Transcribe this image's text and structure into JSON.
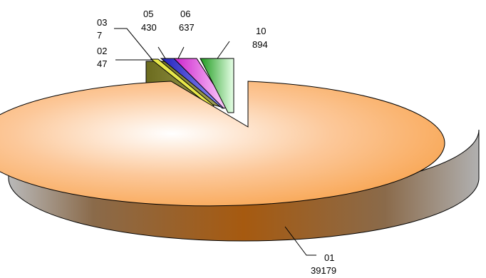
{
  "chart_data": {
    "type": "pie",
    "style": "3d-exploded",
    "slices": [
      {
        "label": "01",
        "value": 39179,
        "color": "#f7941d"
      },
      {
        "label": "02",
        "value": 47,
        "color": "#8a8a2a"
      },
      {
        "label": "03",
        "value": 7,
        "color": "#e8e84a"
      },
      {
        "label": "05",
        "value": 430,
        "color": "#3333dd"
      },
      {
        "label": "06",
        "value": 637,
        "color": "#ff33ff"
      },
      {
        "label": "10",
        "value": 894,
        "color": "#33dd33"
      }
    ],
    "data_labels": [
      {
        "slice": "01",
        "name": "01",
        "value": "39179"
      },
      {
        "slice": "02",
        "name": "02",
        "value": "47"
      },
      {
        "slice": "03",
        "name": "03",
        "value": "7"
      },
      {
        "slice": "05",
        "name": "05",
        "value": "430"
      },
      {
        "slice": "06",
        "name": "06",
        "value": "637"
      },
      {
        "slice": "10",
        "name": "10",
        "value": "894"
      }
    ],
    "legend": "none"
  }
}
